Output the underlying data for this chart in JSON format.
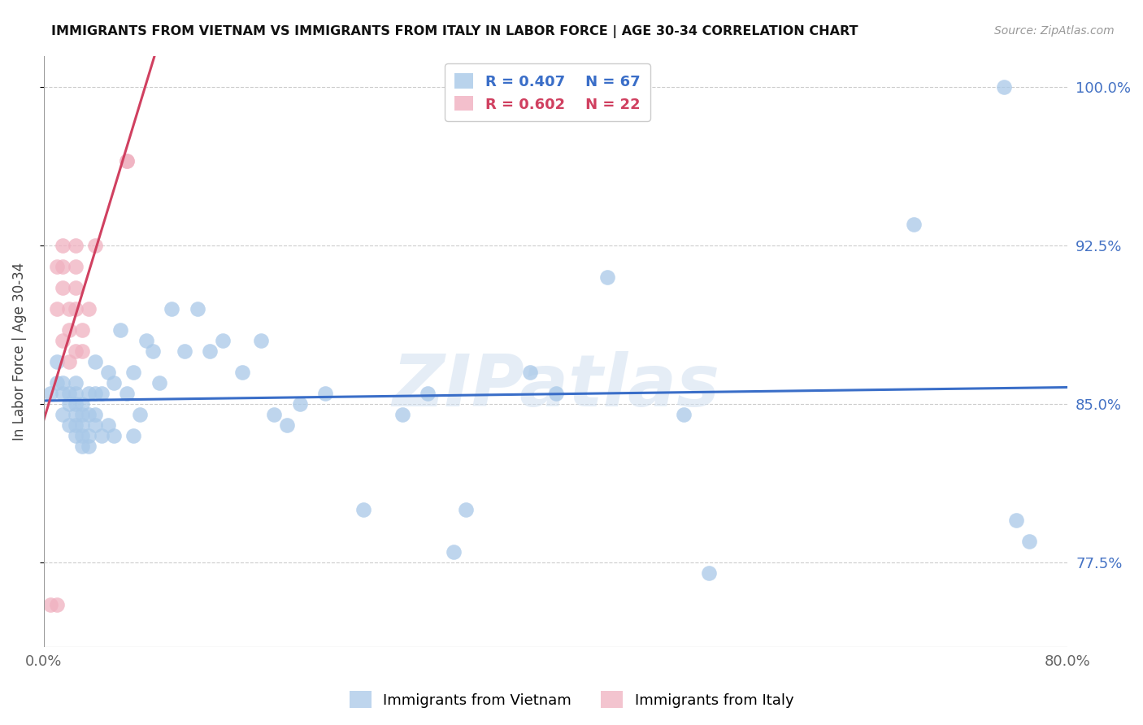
{
  "title": "IMMIGRANTS FROM VIETNAM VS IMMIGRANTS FROM ITALY IN LABOR FORCE | AGE 30-34 CORRELATION CHART",
  "source": "Source: ZipAtlas.com",
  "ylabel": "In Labor Force | Age 30-34",
  "watermark": "ZIPatlas",
  "xlim": [
    0.0,
    0.8
  ],
  "ylim": [
    0.735,
    1.015
  ],
  "ytick_vals": [
    0.775,
    0.85,
    0.925,
    1.0
  ],
  "ytick_labels": [
    "77.5%",
    "85.0%",
    "92.5%",
    "100.0%"
  ],
  "xtick_vals": [
    0.0,
    0.1,
    0.2,
    0.3,
    0.4,
    0.5,
    0.6,
    0.7,
    0.8
  ],
  "xtick_labels": [
    "0.0%",
    "",
    "",
    "",
    "",
    "",
    "",
    "",
    "80.0%"
  ],
  "legend_blue_r": "R = 0.407",
  "legend_blue_n": "N = 67",
  "legend_pink_r": "R = 0.602",
  "legend_pink_n": "N = 22",
  "blue_color": "#A8C8E8",
  "pink_color": "#F0B0C0",
  "blue_line_color": "#3A6EC8",
  "pink_line_color": "#D04060",
  "vietnam_x": [
    0.005,
    0.01,
    0.01,
    0.015,
    0.015,
    0.015,
    0.02,
    0.02,
    0.02,
    0.025,
    0.025,
    0.025,
    0.025,
    0.025,
    0.025,
    0.03,
    0.03,
    0.03,
    0.03,
    0.03,
    0.035,
    0.035,
    0.035,
    0.035,
    0.04,
    0.04,
    0.04,
    0.04,
    0.045,
    0.045,
    0.05,
    0.05,
    0.055,
    0.055,
    0.06,
    0.065,
    0.07,
    0.07,
    0.075,
    0.08,
    0.085,
    0.09,
    0.1,
    0.11,
    0.12,
    0.13,
    0.14,
    0.155,
    0.17,
    0.18,
    0.19,
    0.2,
    0.22,
    0.25,
    0.28,
    0.3,
    0.32,
    0.33,
    0.38,
    0.4,
    0.44,
    0.5,
    0.52,
    0.68,
    0.75,
    0.76,
    0.77
  ],
  "vietnam_y": [
    0.855,
    0.86,
    0.87,
    0.845,
    0.855,
    0.86,
    0.84,
    0.85,
    0.855,
    0.835,
    0.84,
    0.845,
    0.85,
    0.855,
    0.86,
    0.83,
    0.835,
    0.84,
    0.845,
    0.85,
    0.83,
    0.835,
    0.845,
    0.855,
    0.84,
    0.845,
    0.855,
    0.87,
    0.835,
    0.855,
    0.84,
    0.865,
    0.835,
    0.86,
    0.885,
    0.855,
    0.835,
    0.865,
    0.845,
    0.88,
    0.875,
    0.86,
    0.895,
    0.875,
    0.895,
    0.875,
    0.88,
    0.865,
    0.88,
    0.845,
    0.84,
    0.85,
    0.855,
    0.8,
    0.845,
    0.855,
    0.78,
    0.8,
    0.865,
    0.855,
    0.91,
    0.845,
    0.77,
    0.935,
    1.0,
    0.795,
    0.785
  ],
  "italy_x": [
    0.005,
    0.01,
    0.01,
    0.01,
    0.015,
    0.015,
    0.015,
    0.015,
    0.02,
    0.02,
    0.02,
    0.025,
    0.025,
    0.025,
    0.025,
    0.025,
    0.03,
    0.03,
    0.035,
    0.04,
    0.065,
    0.065
  ],
  "italy_y": [
    0.755,
    0.755,
    0.895,
    0.915,
    0.88,
    0.905,
    0.915,
    0.925,
    0.87,
    0.885,
    0.895,
    0.875,
    0.895,
    0.905,
    0.915,
    0.925,
    0.875,
    0.885,
    0.895,
    0.925,
    0.965,
    0.965
  ]
}
